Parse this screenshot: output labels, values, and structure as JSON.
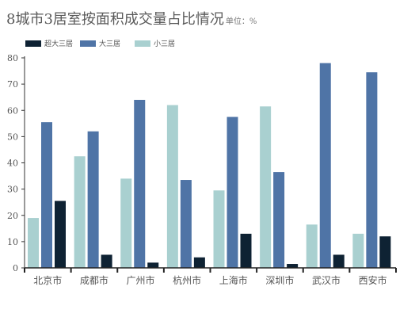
{
  "chart_data": {
    "type": "bar",
    "title": "8城市3居室按面积成交量占比情况",
    "unit_note": "单位：%",
    "categories": [
      "北京市",
      "成都市",
      "广州市",
      "杭州市",
      "上海市",
      "深圳市",
      "武汉市",
      "西安市"
    ],
    "series": [
      {
        "name": "小三居",
        "color": "#a9d0d0",
        "values": [
          19,
          42.5,
          34,
          62,
          29.5,
          61.5,
          16.5,
          13
        ]
      },
      {
        "name": "大三居",
        "color": "#4f74a6",
        "values": [
          55.5,
          52,
          64,
          33.5,
          57.5,
          36.5,
          78,
          74.5
        ]
      },
      {
        "name": "超大三居",
        "color": "#0e2233",
        "values": [
          25.5,
          5,
          2,
          4,
          13,
          1.5,
          5,
          12
        ]
      }
    ],
    "legend": [
      "超大三居",
      "大三居",
      "小三居"
    ],
    "legend_placement": "top-left",
    "ylim": [
      0,
      80
    ],
    "yticks": [
      0,
      10,
      20,
      30,
      40,
      50,
      60,
      70,
      80
    ],
    "grid": false
  }
}
